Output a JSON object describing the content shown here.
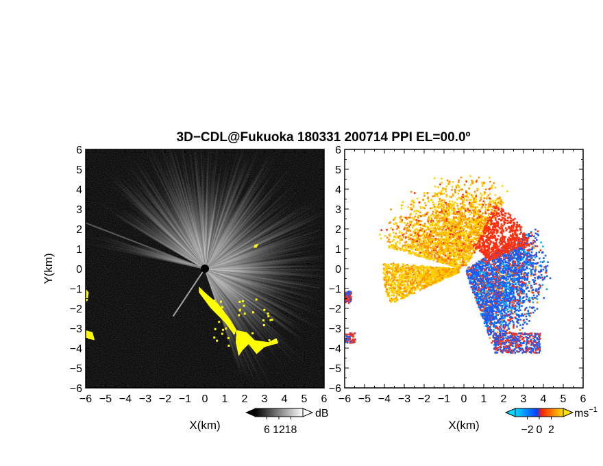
{
  "chart_data": {
    "type": "heatmap",
    "title": "3D−CDL@Fukuoka 180331 200714 PPI EL=00.0º",
    "xlabel": "X(km)",
    "ylabel": "Y(km)",
    "xlim": [
      -6,
      6
    ],
    "ylim": [
      -6,
      6
    ],
    "xticks": [
      -6,
      -5,
      -4,
      -3,
      -2,
      -1,
      0,
      1,
      2,
      3,
      4,
      5,
      6
    ],
    "yticks": [
      -6,
      -5,
      -4,
      -3,
      -2,
      -1,
      0,
      1,
      2,
      3,
      4,
      5,
      6
    ],
    "xtick_labels": [
      "−6",
      "−5",
      "−4",
      "−3",
      "−2",
      "−1",
      "0",
      "1",
      "2",
      "3",
      "4",
      "5",
      "6"
    ],
    "ytick_labels": [
      "−6",
      "−5",
      "−4",
      "−3",
      "−2",
      "−1",
      "0",
      "1",
      "2",
      "3",
      "4",
      "5",
      "6"
    ],
    "panels": [
      {
        "variable": "intensity",
        "colorbar": {
          "unit": "dB",
          "ticks": [
            6,
            12,
            18
          ],
          "tick_labels": [
            "6",
            "12",
            "18"
          ],
          "range": [
            0,
            24
          ],
          "colors": [
            "#000000",
            "#ffffff"
          ]
        },
        "overlay_color": "#ffff00"
      },
      {
        "variable": "radial velocity",
        "colorbar": {
          "unit": "ms",
          "unit_superscript": "−1",
          "ticks": [
            -2,
            0,
            2
          ],
          "tick_labels": [
            "−2",
            "0",
            "2"
          ],
          "range": [
            -4,
            4
          ],
          "colors": [
            "#00c8ff",
            "#0050ff",
            "#ff2000",
            "#ffd000"
          ]
        }
      }
    ]
  }
}
